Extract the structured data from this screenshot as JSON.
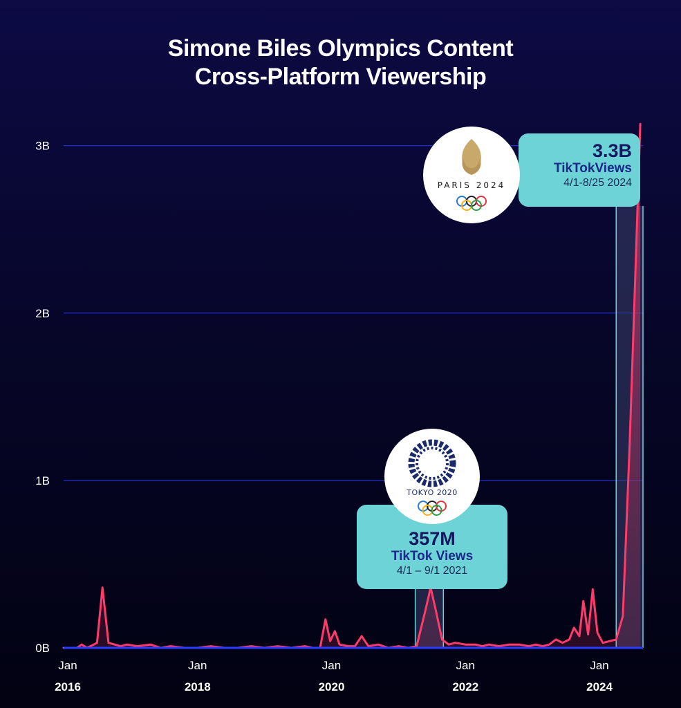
{
  "title": {
    "line1": "Simone Biles Olympics Content",
    "line2": "Cross-Platform Viewership"
  },
  "colors": {
    "background": "#07062a",
    "line": "#ff3b6b",
    "gridline": "#1e2fc8",
    "callout": "#6ed3d6",
    "callout_text": "#14185e"
  },
  "callouts": {
    "paris": {
      "value": "3.3B",
      "label": "TikTokViews",
      "dates": "4/1-8/25 2024",
      "logo_text": "PARIS 2024"
    },
    "tokyo": {
      "value": "357M",
      "label": "TikTok Views",
      "dates": "4/1 – 9/1 2021",
      "logo_text": "TOKYO 2020"
    }
  },
  "chart_data": {
    "type": "line",
    "title": "Simone Biles Olympics Content Cross-Platform Viewership",
    "xlabel": "",
    "ylabel": "",
    "ylim": [
      0,
      3.3
    ],
    "xlim": [
      2016.0,
      2024.65
    ],
    "yticks": [
      "0B",
      "1B",
      "2B",
      "3B"
    ],
    "ytick_values": [
      0,
      1,
      2,
      3
    ],
    "xticks": [
      {
        "month": "Jan",
        "year": "2016",
        "value": 2016.0
      },
      {
        "month": "Jan",
        "year": "2018",
        "value": 2018.0
      },
      {
        "month": "Jan",
        "year": "2020",
        "value": 2020.0
      },
      {
        "month": "Jan",
        "year": "2022",
        "value": 2022.0
      },
      {
        "month": "Jan",
        "year": "2024",
        "value": 2024.0
      }
    ],
    "grid": true,
    "highlights": [
      {
        "name": "Tokyo 2020",
        "x_start": 2021.25,
        "x_end": 2021.67
      },
      {
        "name": "Paris 2024",
        "x_start": 2024.25,
        "x_end": 2024.65
      }
    ],
    "series": [
      {
        "values": [
          [
            2016.0,
            0.0
          ],
          [
            2016.2,
            0.0
          ],
          [
            2016.27,
            0.02
          ],
          [
            2016.35,
            0.0
          ],
          [
            2016.45,
            0.02
          ],
          [
            2016.5,
            0.03
          ],
          [
            2016.58,
            0.36
          ],
          [
            2016.67,
            0.03
          ],
          [
            2016.85,
            0.01
          ],
          [
            2016.95,
            0.02
          ],
          [
            2017.1,
            0.01
          ],
          [
            2017.3,
            0.02
          ],
          [
            2017.45,
            0.0
          ],
          [
            2017.6,
            0.01
          ],
          [
            2017.8,
            0.0
          ],
          [
            2018.0,
            0.0
          ],
          [
            2018.2,
            0.01
          ],
          [
            2018.4,
            0.0
          ],
          [
            2018.6,
            0.0
          ],
          [
            2018.8,
            0.01
          ],
          [
            2019.0,
            0.0
          ],
          [
            2019.2,
            0.01
          ],
          [
            2019.4,
            0.0
          ],
          [
            2019.6,
            0.01
          ],
          [
            2019.72,
            0.0
          ],
          [
            2019.83,
            0.0
          ],
          [
            2019.91,
            0.17
          ],
          [
            2019.98,
            0.04
          ],
          [
            2020.05,
            0.1
          ],
          [
            2020.12,
            0.02
          ],
          [
            2020.25,
            0.01
          ],
          [
            2020.35,
            0.01
          ],
          [
            2020.45,
            0.07
          ],
          [
            2020.55,
            0.01
          ],
          [
            2020.7,
            0.02
          ],
          [
            2020.85,
            0.0
          ],
          [
            2021.0,
            0.01
          ],
          [
            2021.15,
            0.0
          ],
          [
            2021.27,
            0.01
          ],
          [
            2021.4,
            0.22
          ],
          [
            2021.48,
            0.36
          ],
          [
            2021.56,
            0.22
          ],
          [
            2021.65,
            0.05
          ],
          [
            2021.75,
            0.02
          ],
          [
            2021.85,
            0.03
          ],
          [
            2022.0,
            0.02
          ],
          [
            2022.15,
            0.02
          ],
          [
            2022.25,
            0.01
          ],
          [
            2022.35,
            0.02
          ],
          [
            2022.5,
            0.01
          ],
          [
            2022.65,
            0.02
          ],
          [
            2022.8,
            0.02
          ],
          [
            2022.95,
            0.01
          ],
          [
            2023.05,
            0.02
          ],
          [
            2023.15,
            0.01
          ],
          [
            2023.25,
            0.02
          ],
          [
            2023.35,
            0.05
          ],
          [
            2023.45,
            0.03
          ],
          [
            2023.55,
            0.05
          ],
          [
            2023.62,
            0.12
          ],
          [
            2023.7,
            0.07
          ],
          [
            2023.76,
            0.28
          ],
          [
            2023.83,
            0.08
          ],
          [
            2023.9,
            0.35
          ],
          [
            2023.97,
            0.09
          ],
          [
            2024.05,
            0.03
          ],
          [
            2024.15,
            0.04
          ],
          [
            2024.25,
            0.05
          ],
          [
            2024.35,
            0.19
          ],
          [
            2024.45,
            1.2
          ],
          [
            2024.55,
            2.4
          ],
          [
            2024.61,
            3.13
          ]
        ]
      }
    ]
  }
}
